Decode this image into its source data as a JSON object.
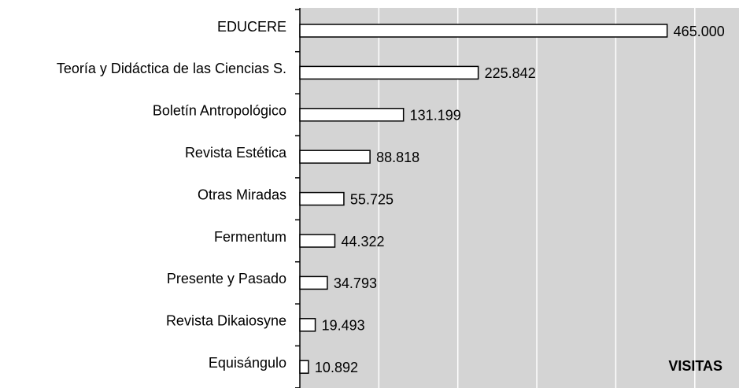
{
  "chart_data": {
    "type": "barh",
    "categories": [
      "EDUCERE",
      "Teoría y Didáctica de las Ciencias S.",
      "Boletín Antropológico",
      "Revista Estética",
      "Otras Miradas",
      "Fermentum",
      "Presente y Pasado",
      "Revista Dikaiosyne",
      "Equisángulo"
    ],
    "values": [
      465000,
      225842,
      131199,
      88818,
      55725,
      44322,
      34793,
      19493,
      10892
    ],
    "value_labels": [
      "465.000",
      "225.842",
      "131.199",
      "88.818",
      "55.725",
      "44.322",
      "34.793",
      "19.493",
      "10.892"
    ],
    "color": "#ffffff",
    "xlabel": "VISITAS",
    "xlim": [
      0,
      556000
    ],
    "xticks": [
      0,
      100000,
      200000,
      300000,
      400000,
      500000
    ],
    "grid": true
  }
}
